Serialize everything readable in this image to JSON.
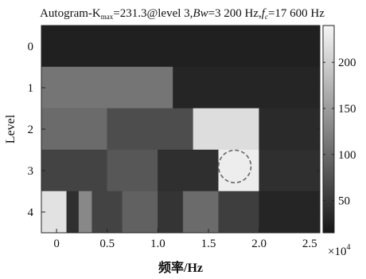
{
  "title": {
    "prefix": "Autogram-K",
    "sub_max": "max",
    "kurtosis": "=231.3@level 3,",
    "bw_label": "Bw",
    "bw_value": "=3 200 Hz,",
    "fc_label": "f",
    "fc_sub": "c",
    "fc_value": "=17 600 Hz"
  },
  "colors": {
    "colormap": [
      "#161616",
      "#f6f6f6"
    ],
    "highlight_circle": "#666666"
  },
  "chart_data": {
    "type": "heatmap",
    "xlabel": "频率/Hz",
    "ylabel": "Level",
    "x_multiplier_label": "×10",
    "x_multiplier_exp": "4",
    "xlim": [
      -0.15,
      2.6
    ],
    "ylim": [
      4.5,
      -0.5
    ],
    "x_ticks": [
      0,
      0.5,
      1.0,
      1.5,
      2.0,
      2.5
    ],
    "x_tick_labels": [
      "0",
      "0.5",
      "1.0",
      "1.5",
      "2.0",
      "2.5"
    ],
    "y_ticks": [
      0,
      1,
      2,
      3,
      4
    ],
    "y_tick_labels": [
      "0",
      "1",
      "2",
      "3",
      "4"
    ],
    "colorbar": {
      "range": [
        15,
        240
      ],
      "ticks": [
        50,
        100,
        150,
        200
      ],
      "tick_labels": [
        "50",
        "100",
        "150",
        "200"
      ]
    },
    "cells": [
      {
        "level": 0,
        "x0": -0.15,
        "x1": 2.6,
        "value": 25
      },
      {
        "level": 1,
        "x0": -0.15,
        "x1": 1.15,
        "value": 110
      },
      {
        "level": 1,
        "x0": 1.15,
        "x1": 2.6,
        "value": 30
      },
      {
        "level": 2,
        "x0": -0.15,
        "x1": 0.5,
        "value": 100
      },
      {
        "level": 2,
        "x0": 0.5,
        "x1": 1.35,
        "value": 70
      },
      {
        "level": 2,
        "x0": 1.35,
        "x1": 2.0,
        "value": 215
      },
      {
        "level": 2,
        "x0": 2.0,
        "x1": 2.6,
        "value": 35
      },
      {
        "level": 3,
        "x0": -0.15,
        "x1": 0.5,
        "value": 60
      },
      {
        "level": 3,
        "x0": 0.5,
        "x1": 1.0,
        "value": 80
      },
      {
        "level": 3,
        "x0": 1.0,
        "x1": 1.6,
        "value": 40
      },
      {
        "level": 3,
        "x0": 1.6,
        "x1": 2.0,
        "value": 231
      },
      {
        "level": 3,
        "x0": 2.0,
        "x1": 2.6,
        "value": 40
      },
      {
        "level": 4,
        "x0": -0.15,
        "x1": 0.1,
        "value": 220
      },
      {
        "level": 4,
        "x0": 0.1,
        "x1": 0.22,
        "value": 40
      },
      {
        "level": 4,
        "x0": 0.22,
        "x1": 0.35,
        "value": 130
      },
      {
        "level": 4,
        "x0": 0.35,
        "x1": 0.65,
        "value": 60
      },
      {
        "level": 4,
        "x0": 0.65,
        "x1": 1.0,
        "value": 90
      },
      {
        "level": 4,
        "x0": 1.0,
        "x1": 1.25,
        "value": 45
      },
      {
        "level": 4,
        "x0": 1.25,
        "x1": 1.6,
        "value": 100
      },
      {
        "level": 4,
        "x0": 1.6,
        "x1": 2.0,
        "value": 55
      },
      {
        "level": 4,
        "x0": 2.0,
        "x1": 2.6,
        "value": 30
      }
    ],
    "highlight": {
      "fc": 1.76,
      "bw": 0.32,
      "level": 3
    }
  }
}
